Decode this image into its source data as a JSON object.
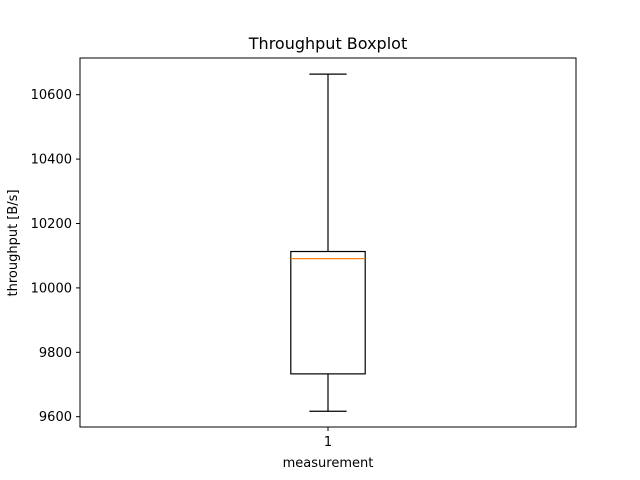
{
  "chart_data": {
    "type": "boxplot",
    "title": "Throughput Boxplot",
    "xlabel": "measurement",
    "ylabel": "throughput [B/s]",
    "categories": [
      "1"
    ],
    "ylim": [
      9568,
      10714
    ],
    "yticks": [
      9600,
      9800,
      10000,
      10200,
      10400,
      10600
    ],
    "grid": false,
    "series": [
      {
        "whisker_low": 9617,
        "q1": 9733,
        "median": 10091,
        "q3": 10113,
        "whisker_high": 10664
      }
    ],
    "colors": {
      "box": "#000000",
      "median": "#ff7f0e",
      "axes": "#000000"
    }
  }
}
